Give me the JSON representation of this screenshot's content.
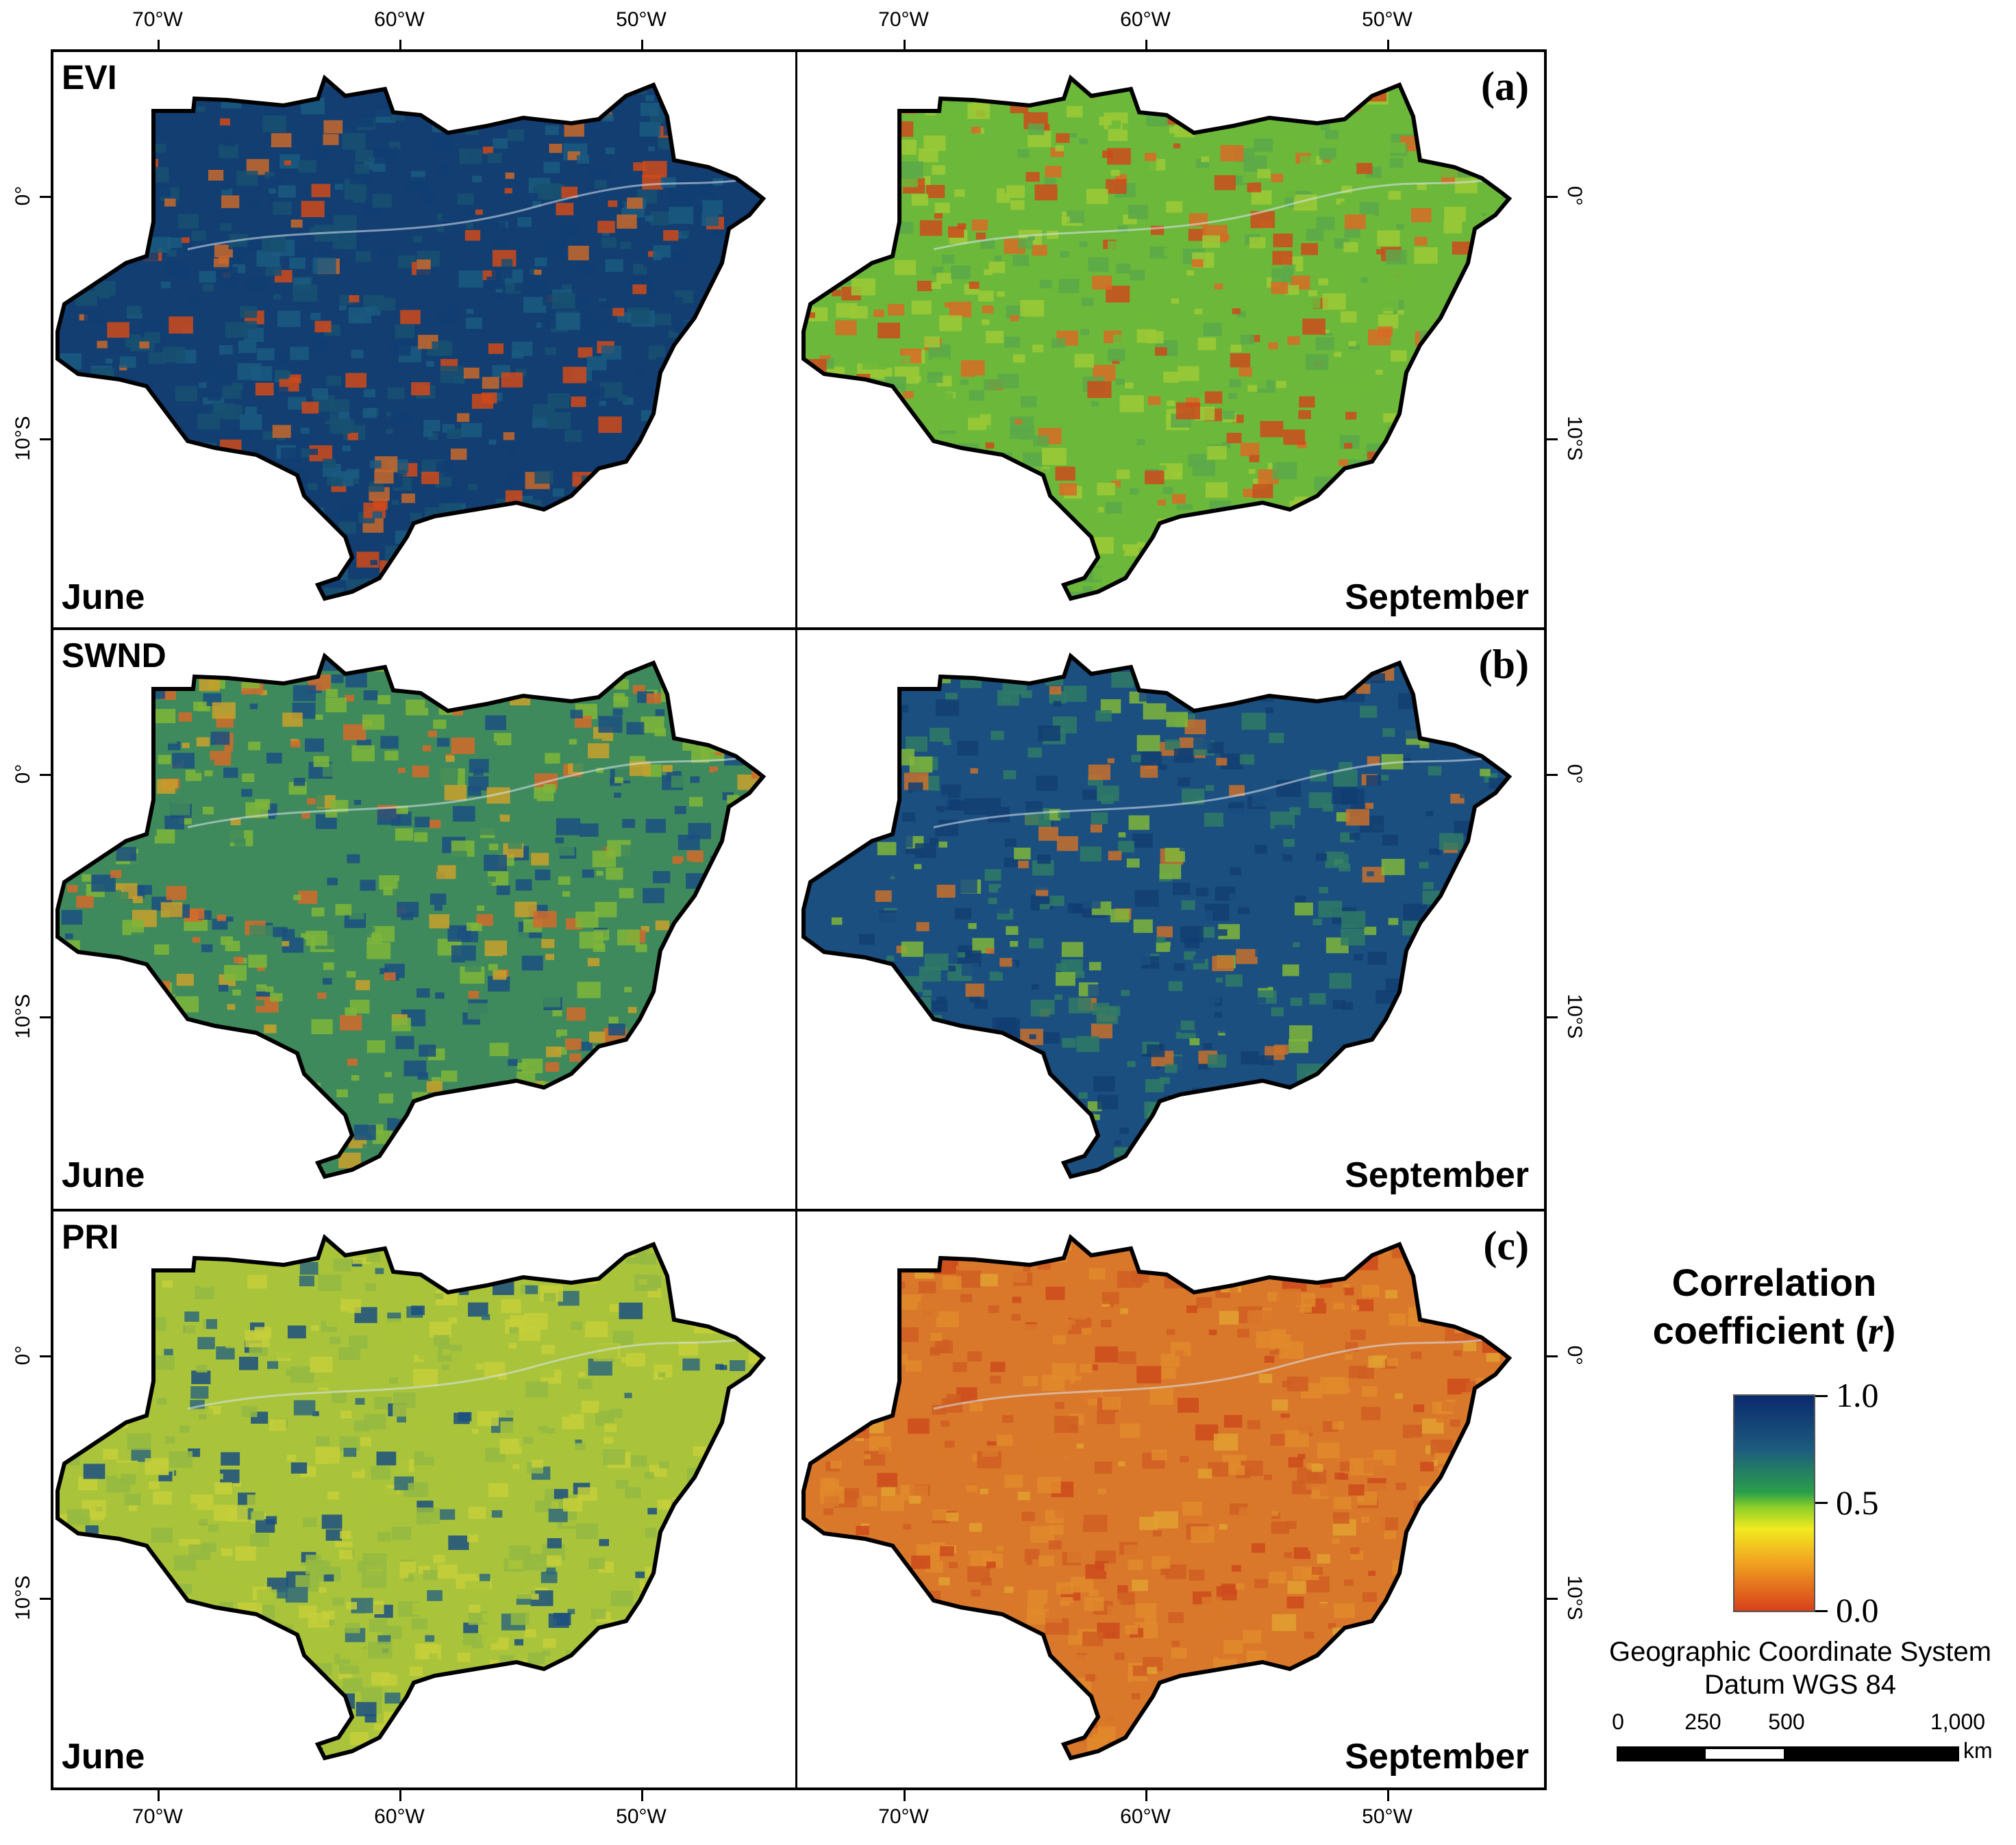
{
  "figure": {
    "longitude_labels": [
      "70°W",
      "60°W",
      "50°W"
    ],
    "latitude_labels": [
      "0°",
      "10°S"
    ],
    "panels": [
      {
        "index": "EVI",
        "letter": "(a)",
        "left_month": "June",
        "right_month": "September",
        "left_tone": "mostly dark blue with red patches in the north",
        "right_tone": "green-yellow with red patches in the west"
      },
      {
        "index": "SWND",
        "letter": "(b)",
        "left_month": "June",
        "right_month": "September",
        "left_tone": "mixed green, blue and yellow",
        "right_tone": "mixed blue and green, dark blue in the south"
      },
      {
        "index": "PRI",
        "letter": "(c)",
        "left_month": "June",
        "right_month": "September",
        "left_tone": "yellow-green with blue in the south-east",
        "right_tone": "uniform orange-red"
      }
    ]
  },
  "legend": {
    "title_line1": "Correlation",
    "title_line2": "coefficient (",
    "title_symbol": "r",
    "title_close": ")",
    "colorbar_labels": [
      "1.0",
      "0.5",
      "0.0"
    ],
    "colors": {
      "high": "#0a2a6e",
      "mid": "#8ed028",
      "low": "#d8401a"
    }
  },
  "crs": {
    "line1": "Geographic Coordinate System",
    "line2": "Datum WGS 84"
  },
  "scalebar": {
    "ticks": [
      "0",
      "250",
      "500",
      "1,000"
    ],
    "unit": "km"
  }
}
